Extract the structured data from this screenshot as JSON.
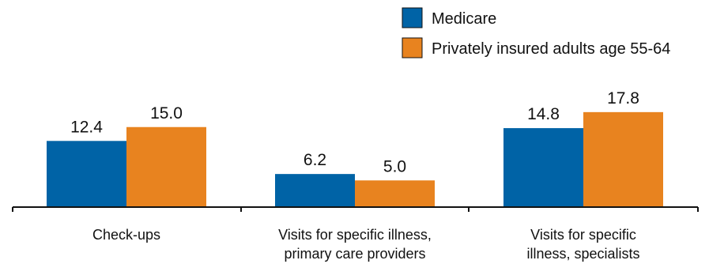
{
  "chart_data": {
    "type": "bar",
    "categories": [
      [
        "Check-ups"
      ],
      [
        "Visits for specific illness,",
        "primary care providers"
      ],
      [
        "Visits for specific",
        "illness, specialists"
      ]
    ],
    "series": [
      {
        "name": "Medicare",
        "color": "#0063a6",
        "values": [
          12.4,
          6.2,
          14.8
        ],
        "labels": [
          "12.4",
          "6.2",
          "14.8"
        ]
      },
      {
        "name": "Privately insured adults age 55-64",
        "color": "#e8831f",
        "values": [
          15.0,
          5.0,
          17.8
        ],
        "labels": [
          "15.0",
          "5.0",
          "17.8"
        ]
      }
    ],
    "ylim": [
      0,
      20
    ],
    "legend": "top-right",
    "grid": false
  }
}
